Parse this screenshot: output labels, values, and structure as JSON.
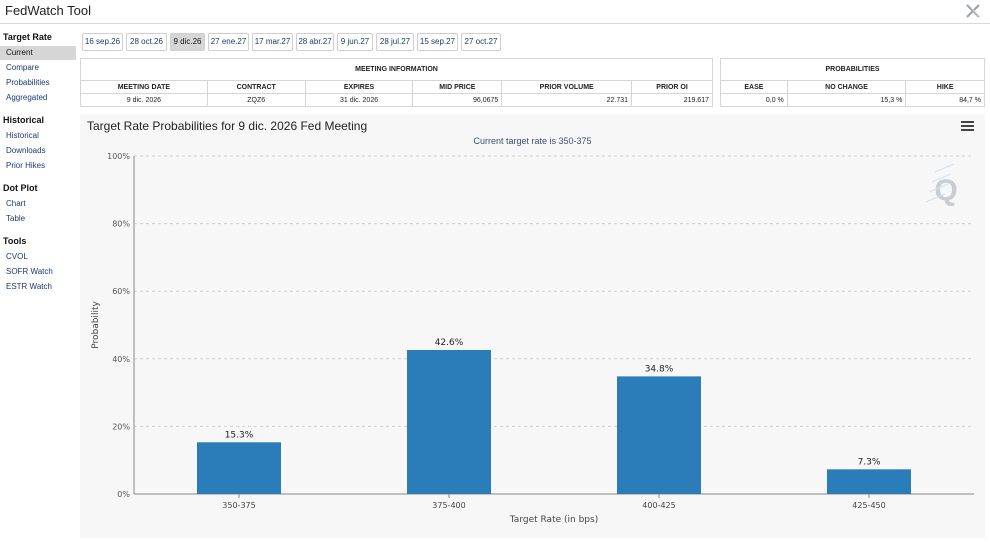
{
  "app": {
    "title": "FedWatch Tool",
    "close_glyph": "𝕏"
  },
  "sidebar": [
    {
      "label": "Target Rate",
      "items": [
        {
          "label": "Current",
          "active": true
        },
        {
          "label": "Compare"
        },
        {
          "label": "Probabilities"
        },
        {
          "label": "Aggregated"
        }
      ]
    },
    {
      "label": "Historical",
      "items": [
        {
          "label": "Historical"
        },
        {
          "label": "Downloads"
        },
        {
          "label": "Prior Hikes"
        }
      ]
    },
    {
      "label": "Dot Plot",
      "items": [
        {
          "label": "Chart"
        },
        {
          "label": "Table"
        }
      ]
    },
    {
      "label": "Tools",
      "items": [
        {
          "label": "CVOL"
        },
        {
          "label": "SOFR Watch"
        },
        {
          "label": "ESTR Watch"
        }
      ]
    }
  ],
  "meeting_tabs": [
    "16 sep.26",
    "28 oct.26",
    "9 dic.26",
    "27 ene.27",
    "17 mar.27",
    "28 abr.27",
    "9 jun.27",
    "28 jul.27",
    "15 sep.27",
    "27 oct.27"
  ],
  "active_meeting_tab": 2,
  "meeting_info": {
    "title": "MEETING INFORMATION",
    "headers": [
      "MEETING DATE",
      "CONTRACT",
      "EXPIRES",
      "MID PRICE",
      "PRIOR VOLUME",
      "PRIOR OI"
    ],
    "values": [
      "9 dic. 2026",
      "ZQZ6",
      "31 dic. 2026",
      "96,0675",
      "22.731",
      "219.617"
    ]
  },
  "probabilities": {
    "title": "PROBABILITIES",
    "headers": [
      "EASE",
      "NO CHANGE",
      "HIKE"
    ],
    "values": [
      "0,0 %",
      "15,3 %",
      "84,7 %"
    ]
  },
  "chart_header": {
    "title": "Target Rate Probabilities for 9 dic. 2026 Fed Meeting",
    "subtitle": "Current target rate is 350-375"
  },
  "icons": {
    "menu": "hamburger-menu-icon",
    "watermark": "q-logo-watermark-icon"
  },
  "colors": {
    "bar": "#2a7db8",
    "panel": "#f7f7f7"
  },
  "chart_data": {
    "type": "bar",
    "categories": [
      "350-375",
      "375-400",
      "400-425",
      "425-450"
    ],
    "values": [
      15.3,
      42.6,
      34.8,
      7.3
    ],
    "data_labels": [
      "15.3%",
      "42.6%",
      "34.8%",
      "7.3%"
    ],
    "ylim": [
      0,
      100
    ],
    "yticks": [
      0,
      20,
      40,
      60,
      80,
      100
    ],
    "ytick_labels": [
      "0%",
      "20%",
      "40%",
      "60%",
      "80%",
      "100%"
    ],
    "xlabel": "Target Rate (in bps)",
    "ylabel": "Probability",
    "grid": true,
    "legend": "none"
  }
}
